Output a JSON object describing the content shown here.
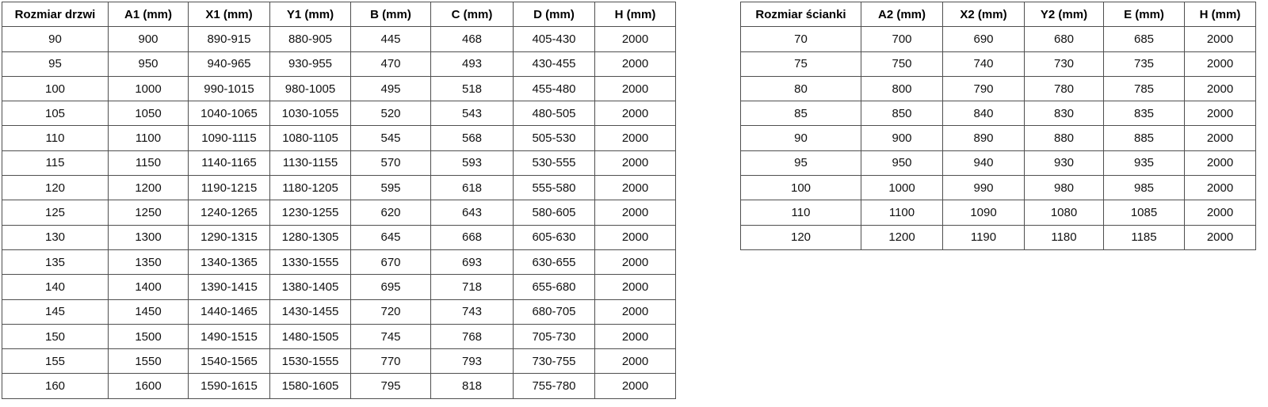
{
  "page": {
    "background_color": "#ffffff",
    "border_color": "#4f4f4f",
    "text_color": "#111111"
  },
  "door_table": {
    "headers": [
      "Rozmiar drzwi",
      "A1 (mm)",
      "X1 (mm)",
      "Y1 (mm)",
      "B (mm)",
      "C (mm)",
      "D (mm)",
      "H (mm)"
    ],
    "rows": [
      [
        "90",
        "900",
        "890-915",
        "880-905",
        "445",
        "468",
        "405-430",
        "2000"
      ],
      [
        "95",
        "950",
        "940-965",
        "930-955",
        "470",
        "493",
        "430-455",
        "2000"
      ],
      [
        "100",
        "1000",
        "990-1015",
        "980-1005",
        "495",
        "518",
        "455-480",
        "2000"
      ],
      [
        "105",
        "1050",
        "1040-1065",
        "1030-1055",
        "520",
        "543",
        "480-505",
        "2000"
      ],
      [
        "110",
        "1100",
        "1090-1115",
        "1080-1105",
        "545",
        "568",
        "505-530",
        "2000"
      ],
      [
        "115",
        "1150",
        "1140-1165",
        "1130-1155",
        "570",
        "593",
        "530-555",
        "2000"
      ],
      [
        "120",
        "1200",
        "1190-1215",
        "1180-1205",
        "595",
        "618",
        "555-580",
        "2000"
      ],
      [
        "125",
        "1250",
        "1240-1265",
        "1230-1255",
        "620",
        "643",
        "580-605",
        "2000"
      ],
      [
        "130",
        "1300",
        "1290-1315",
        "1280-1305",
        "645",
        "668",
        "605-630",
        "2000"
      ],
      [
        "135",
        "1350",
        "1340-1365",
        "1330-1555",
        "670",
        "693",
        "630-655",
        "2000"
      ],
      [
        "140",
        "1400",
        "1390-1415",
        "1380-1405",
        "695",
        "718",
        "655-680",
        "2000"
      ],
      [
        "145",
        "1450",
        "1440-1465",
        "1430-1455",
        "720",
        "743",
        "680-705",
        "2000"
      ],
      [
        "150",
        "1500",
        "1490-1515",
        "1480-1505",
        "745",
        "768",
        "705-730",
        "2000"
      ],
      [
        "155",
        "1550",
        "1540-1565",
        "1530-1555",
        "770",
        "793",
        "730-755",
        "2000"
      ],
      [
        "160",
        "1600",
        "1590-1615",
        "1580-1605",
        "795",
        "818",
        "755-780",
        "2000"
      ]
    ]
  },
  "wall_table": {
    "headers": [
      "Rozmiar ścianki",
      "A2 (mm)",
      "X2 (mm)",
      "Y2 (mm)",
      "E (mm)",
      "H (mm)"
    ],
    "rows": [
      [
        "70",
        "700",
        "690",
        "680",
        "685",
        "2000"
      ],
      [
        "75",
        "750",
        "740",
        "730",
        "735",
        "2000"
      ],
      [
        "80",
        "800",
        "790",
        "780",
        "785",
        "2000"
      ],
      [
        "85",
        "850",
        "840",
        "830",
        "835",
        "2000"
      ],
      [
        "90",
        "900",
        "890",
        "880",
        "885",
        "2000"
      ],
      [
        "95",
        "950",
        "940",
        "930",
        "935",
        "2000"
      ],
      [
        "100",
        "1000",
        "990",
        "980",
        "985",
        "2000"
      ],
      [
        "110",
        "1100",
        "1090",
        "1080",
        "1085",
        "2000"
      ],
      [
        "120",
        "1200",
        "1190",
        "1180",
        "1185",
        "2000"
      ]
    ]
  }
}
